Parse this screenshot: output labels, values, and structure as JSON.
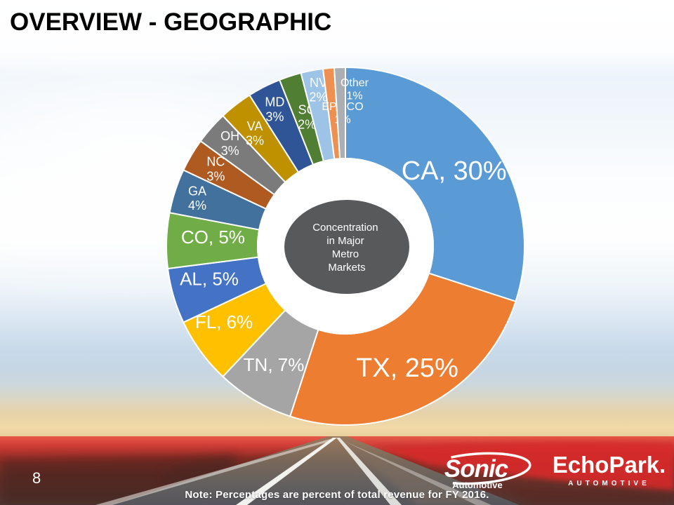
{
  "slide": {
    "title": "OVERVIEW - GEOGRAPHIC",
    "page_number": "8",
    "note": "Note: Percentages are percent of total revenue for FY 2016."
  },
  "chart_data": {
    "type": "pie",
    "subtype": "donut",
    "start_angle_deg": 0,
    "direction": "clockwise",
    "units": "percent of total revenue (FY 2016)",
    "center_label_lines": [
      "Concentration",
      "in Major",
      "Metro",
      "Markets"
    ],
    "center_fill": "#58595B",
    "slices": [
      {
        "label": "CA",
        "value": 30,
        "display": [
          "CA, 30%"
        ],
        "color": "#5B9BD5"
      },
      {
        "label": "TX",
        "value": 25,
        "display": [
          "TX, 25%"
        ],
        "color": "#ED7D31"
      },
      {
        "label": "TN",
        "value": 7,
        "display": [
          "TN, 7%"
        ],
        "color": "#A5A5A5"
      },
      {
        "label": "FL",
        "value": 6,
        "display": [
          "FL, 6%"
        ],
        "color": "#FFC000"
      },
      {
        "label": "AL",
        "value": 5,
        "display": [
          "AL, 5%"
        ],
        "color": "#4472C4"
      },
      {
        "label": "CO",
        "value": 5,
        "display": [
          "CO, 5%"
        ],
        "color": "#70AD47"
      },
      {
        "label": "GA",
        "value": 4,
        "display": [
          "GA",
          "4%"
        ],
        "color": "#41719C"
      },
      {
        "label": "NC",
        "value": 3,
        "display": [
          "NC",
          "3%"
        ],
        "color": "#AE5A21"
      },
      {
        "label": "OH",
        "value": 3,
        "display": [
          "OH",
          "3%"
        ],
        "color": "#7B7B7B"
      },
      {
        "label": "VA",
        "value": 3,
        "display": [
          "VA",
          "3%"
        ],
        "color": "#BF9000"
      },
      {
        "label": "MD",
        "value": 3,
        "display": [
          "MD",
          "3%"
        ],
        "color": "#2F5597"
      },
      {
        "label": "SC",
        "value": 2,
        "display": [
          "SC",
          "2%"
        ],
        "color": "#507E32"
      },
      {
        "label": "NV",
        "value": 2,
        "display": [
          "NV",
          "2%"
        ],
        "color": "#9DC3E6"
      },
      {
        "label": "EP - CO",
        "value": 1,
        "display": [
          "EP - CO",
          "1%"
        ],
        "color": "#EE9052"
      },
      {
        "label": "Other",
        "value": 1,
        "display": [
          "Other",
          "1%"
        ],
        "color": "#ABAFB3"
      }
    ]
  },
  "footer": {
    "logos": {
      "sonic": {
        "name": "Sonic",
        "sub": "Automotive"
      },
      "echopark": {
        "name": "EchoPark.",
        "sub": "AUTOMOTIVE"
      }
    }
  }
}
